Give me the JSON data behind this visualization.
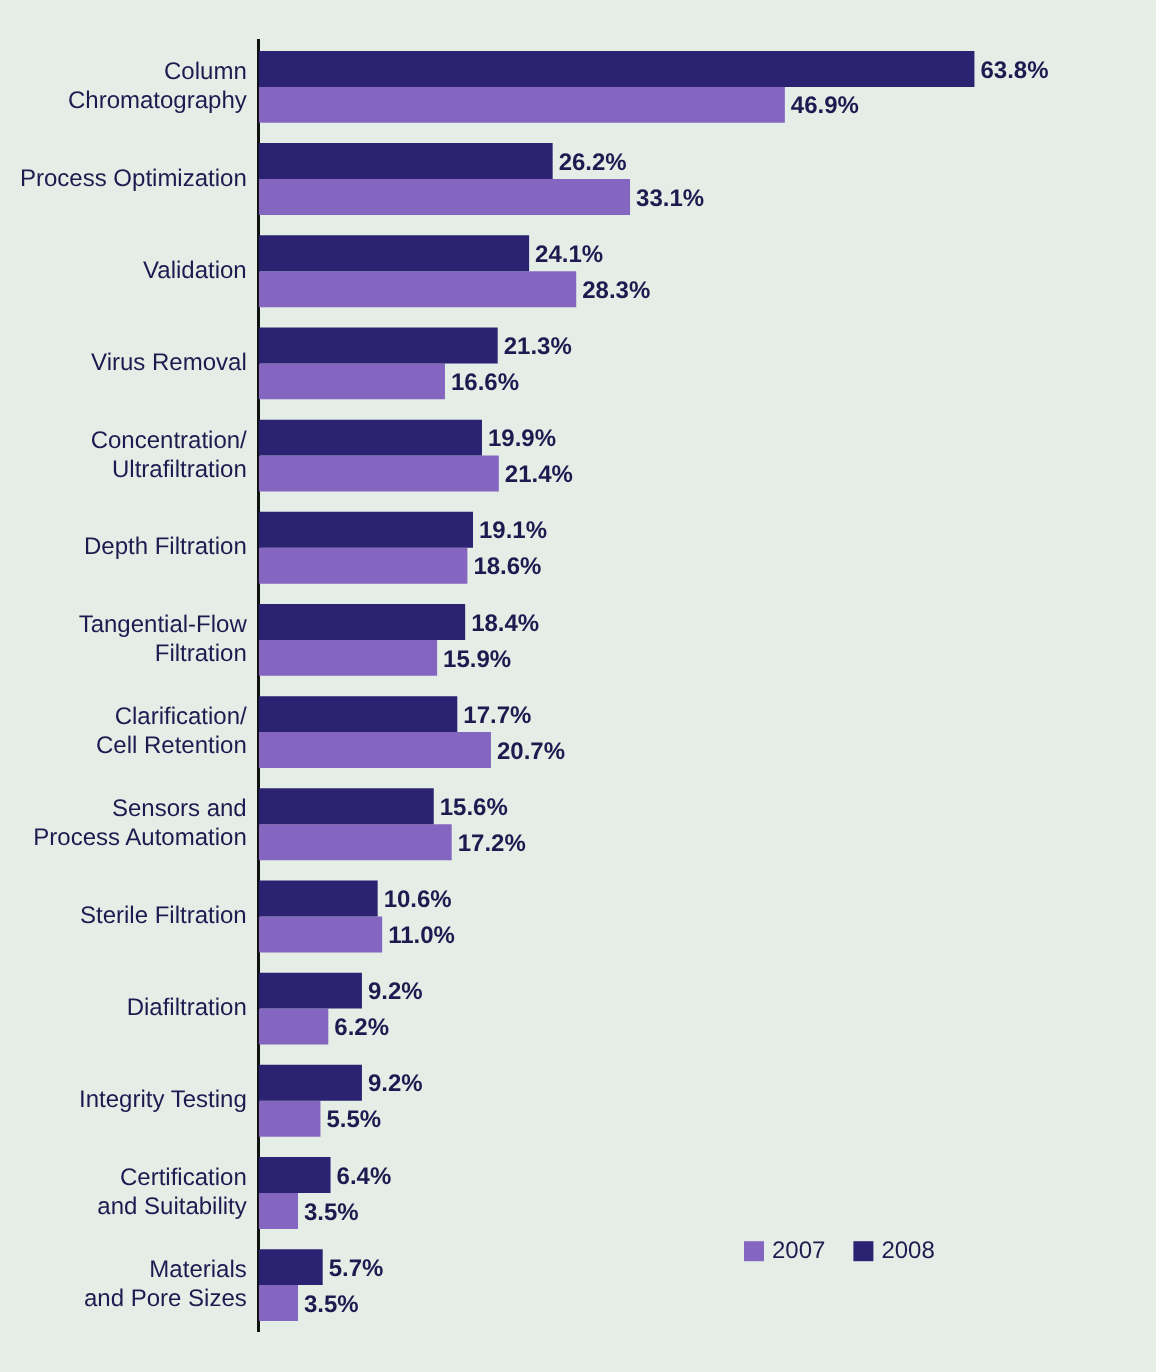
{
  "chart_data": {
    "type": "bar",
    "orientation": "horizontal",
    "categories": [
      "Column\nChromatography",
      "Process Optimization",
      "Validation",
      "Virus Removal",
      "Concentration/\nUltrafiltration",
      "Depth Filtration",
      "Tangential-Flow\nFiltration",
      "Clarification/\nCell Retention",
      "Sensors and\nProcess Automation",
      "Sterile Filtration",
      "Diafiltration",
      "Integrity Testing",
      "Certification\nand Suitability",
      "Materials\nand Pore Sizes"
    ],
    "series": [
      {
        "name": "2008",
        "color": "#2b2272",
        "values": [
          63.8,
          26.2,
          24.1,
          21.3,
          19.9,
          19.1,
          18.4,
          17.7,
          15.6,
          10.6,
          9.2,
          9.2,
          6.4,
          5.7
        ],
        "value_labels": [
          "63.8%",
          "26.2%",
          "24.1%",
          "21.3%",
          "19.9%",
          "19.1%",
          "18.4%",
          "17.7%",
          "15.6%",
          "10.6%",
          "9.2%",
          "9.2%",
          "6.4%",
          "5.7%"
        ]
      },
      {
        "name": "2007",
        "color": "#8466c0",
        "values": [
          46.9,
          33.1,
          28.3,
          16.6,
          21.4,
          18.6,
          15.9,
          20.7,
          17.2,
          11.0,
          6.2,
          5.5,
          3.5,
          3.5
        ],
        "value_labels": [
          "46.9%",
          "33.1%",
          "28.3%",
          "16.6%",
          "21.4%",
          "18.6%",
          "15.9%",
          "20.7%",
          "17.2%",
          "11.0%",
          "6.2%",
          "5.5%",
          "3.5%",
          "3.5%"
        ]
      }
    ],
    "tick_labels": "y",
    "grid": false,
    "legend": "bottom right"
  }
}
